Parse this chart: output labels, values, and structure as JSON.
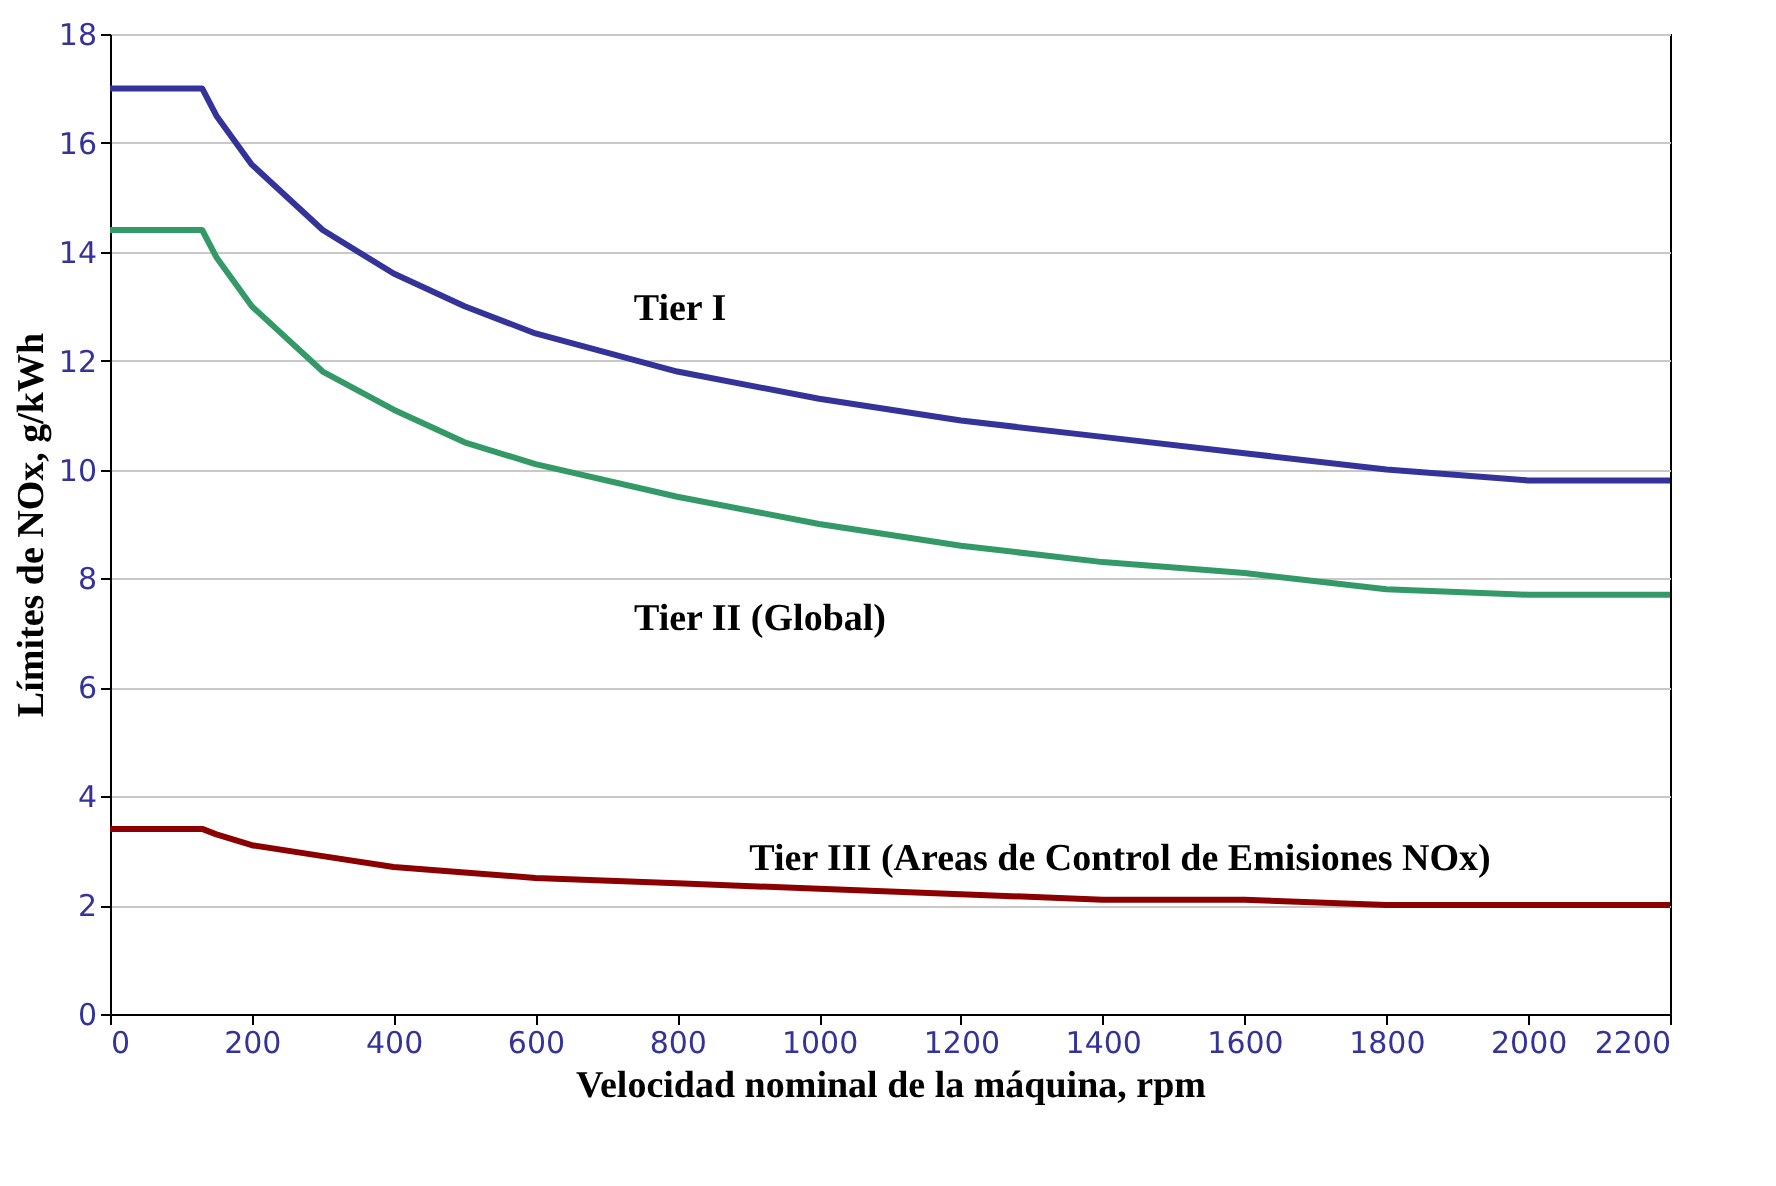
{
  "chart_data": {
    "type": "line",
    "xlabel": "Velocidad nominal de la máquina, rpm",
    "ylabel": "Límites de NOx, g/kWh",
    "x": [
      0,
      130,
      150,
      200,
      300,
      400,
      500,
      600,
      800,
      1000,
      1200,
      1400,
      1600,
      1800,
      2000,
      2200
    ],
    "series": [
      {
        "color": "#333399",
        "values": [
          17,
          17,
          16.5,
          15.6,
          14.4,
          13.6,
          13,
          12.5,
          11.8,
          11.3,
          10.9,
          10.6,
          10.3,
          10,
          9.8,
          9.8
        ]
      },
      {
        "color": "#339966",
        "values": [
          14.4,
          14.4,
          13.9,
          13,
          11.8,
          11.1,
          10.5,
          10.1,
          9.5,
          9,
          8.6,
          8.3,
          8.1,
          7.8,
          7.7,
          7.7
        ]
      },
      {
        "color": "#8b0000",
        "values": [
          3.4,
          3.4,
          3.3,
          3.1,
          2.9,
          2.7,
          2.6,
          2.5,
          2.4,
          2.3,
          2.2,
          2.1,
          2.1,
          2,
          2,
          2
        ]
      }
    ],
    "annotations": [
      "Tier I",
      "Tier II (Global)",
      "Tier III (Areas de Control de Emisiones NOx)"
    ],
    "xlim": [
      0,
      2200
    ],
    "xticks": [
      0,
      200,
      400,
      600,
      800,
      1000,
      1200,
      1400,
      1600,
      1800,
      2000,
      2200
    ],
    "ylim": [
      0,
      18
    ],
    "yticks": [
      0,
      2,
      4,
      6,
      8,
      10,
      12,
      14,
      16,
      18
    ],
    "grid": "y",
    "legend": false,
    "marker": "none",
    "line_style": "solid"
  }
}
